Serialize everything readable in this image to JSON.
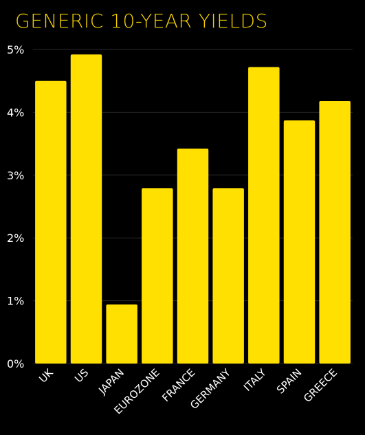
{
  "chart_data": {
    "type": "bar",
    "title": "GENERIC 10-YEAR YIELDS",
    "xlabel": "",
    "ylabel": "",
    "categories": [
      "UK",
      "US",
      "JAPAN",
      "EUROZONE",
      "FRANCE",
      "GERMANY",
      "ITALY",
      "SPAIN",
      "GREECE"
    ],
    "values": [
      4.5,
      4.92,
      0.94,
      2.79,
      3.42,
      2.79,
      4.72,
      3.87,
      4.18
    ],
    "ylim": [
      0,
      5
    ],
    "yticks": [
      0,
      1,
      2,
      3,
      4,
      5
    ],
    "ytick_labels": [
      "0%",
      "1%",
      "2%",
      "3%",
      "4%",
      "5%"
    ],
    "grid": true,
    "bar_color": "#FFE000",
    "title_color": "#F5D000",
    "background": "#000000",
    "grid_color": "#2a2a2a"
  }
}
